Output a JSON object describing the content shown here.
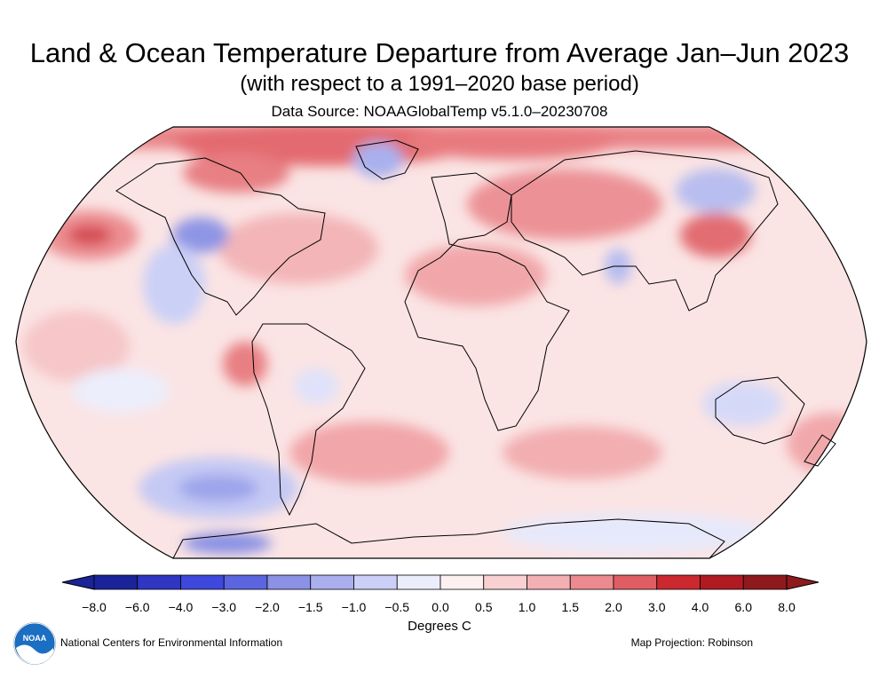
{
  "header": {
    "title": "Land & Ocean Temperature Departure from Average Jan–Jun 2023",
    "subtitle": "(with respect to a 1991–2020 base period)",
    "source": "Data Source: NOAAGlobalTemp v5.1.0–20230708"
  },
  "colorbar": {
    "ticks": [
      "−8.0",
      "−6.0",
      "−4.0",
      "−3.0",
      "−2.0",
      "−1.5",
      "−1.0",
      "−0.5",
      "0.0",
      "0.5",
      "1.0",
      "1.5",
      "2.0",
      "3.0",
      "4.0",
      "6.0",
      "8.0"
    ],
    "colors": [
      "#1a2398",
      "#2f36c2",
      "#3e48dc",
      "#5a65df",
      "#8b92e6",
      "#aab0ee",
      "#ccd0f7",
      "#ebedfd",
      "#fdf0f0",
      "#f9d1d2",
      "#f3b0b2",
      "#ec8b8f",
      "#e05e63",
      "#cc282f",
      "#b01b22",
      "#8f1a1e"
    ],
    "units": "Degrees C"
  },
  "footer": {
    "org": "National Centers for Environmental Information",
    "projection": "Map Projection: Robinson",
    "logo_text": "NOAA"
  },
  "colors": {
    "land_outline": "#000000",
    "map_base": "#fbe3e3"
  }
}
